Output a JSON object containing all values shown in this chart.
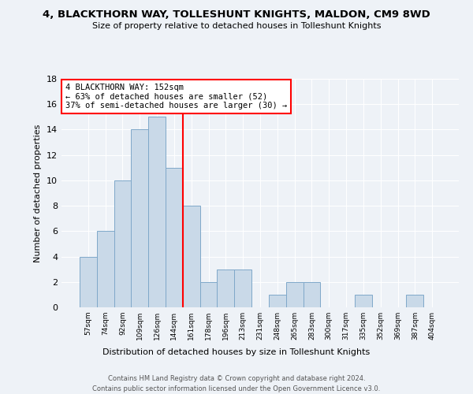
{
  "title": "4, BLACKTHORN WAY, TOLLESHUNT KNIGHTS, MALDON, CM9 8WD",
  "subtitle": "Size of property relative to detached houses in Tolleshunt Knights",
  "xlabel": "Distribution of detached houses by size in Tolleshunt Knights",
  "ylabel": "Number of detached properties",
  "footer_line1": "Contains HM Land Registry data © Crown copyright and database right 2024.",
  "footer_line2": "Contains public sector information licensed under the Open Government Licence v3.0.",
  "bin_labels": [
    "57sqm",
    "74sqm",
    "92sqm",
    "109sqm",
    "126sqm",
    "144sqm",
    "161sqm",
    "178sqm",
    "196sqm",
    "213sqm",
    "231sqm",
    "248sqm",
    "265sqm",
    "283sqm",
    "300sqm",
    "317sqm",
    "335sqm",
    "352sqm",
    "369sqm",
    "387sqm",
    "404sqm"
  ],
  "bar_values": [
    4,
    6,
    10,
    14,
    15,
    11,
    8,
    2,
    3,
    3,
    0,
    1,
    2,
    2,
    0,
    0,
    1,
    0,
    0,
    1,
    0
  ],
  "bar_color": "#c9d9e8",
  "bar_edgecolor": "#7fa8c9",
  "ylim": [
    0,
    18
  ],
  "yticks": [
    0,
    2,
    4,
    6,
    8,
    10,
    12,
    14,
    16,
    18
  ],
  "vline_pos": 5.5,
  "annotation_title": "4 BLACKTHORN WAY: 152sqm",
  "annotation_line2": "← 63% of detached houses are smaller (52)",
  "annotation_line3": "37% of semi-detached houses are larger (30) →",
  "background_color": "#eef2f7",
  "grid_color": "#ffffff"
}
